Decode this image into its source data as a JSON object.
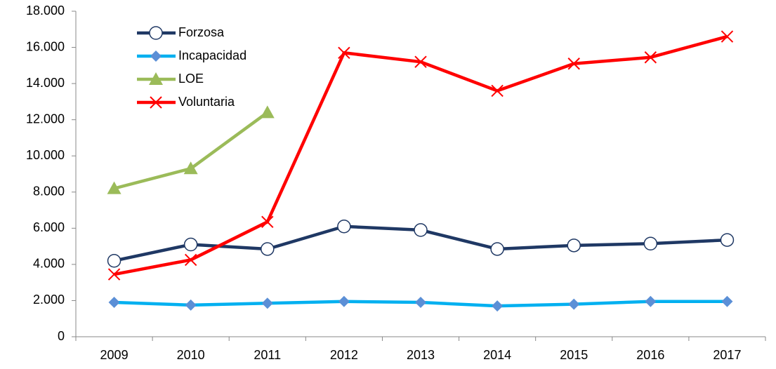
{
  "chart_data": {
    "type": "line",
    "categories": [
      "2009",
      "2010",
      "2011",
      "2012",
      "2013",
      "2014",
      "2015",
      "2016",
      "2017"
    ],
    "series": [
      {
        "name": "Forzosa",
        "color": "#1f3864",
        "marker": "circle",
        "marker_color": "#ffffff",
        "values": [
          4200,
          5100,
          4850,
          6100,
          5900,
          4850,
          5050,
          5150,
          5350
        ]
      },
      {
        "name": "Incapacidad",
        "color": "#00b0f0",
        "marker": "diamond",
        "marker_color": "#5b8fd6",
        "values": [
          1900,
          1750,
          1850,
          1950,
          1900,
          1700,
          1800,
          1950,
          1950
        ]
      },
      {
        "name": "LOE",
        "color": "#9bbb59",
        "marker": "triangle",
        "marker_color": "#9bbb59",
        "values": [
          8200,
          9300,
          12400,
          null,
          null,
          null,
          null,
          null,
          null
        ]
      },
      {
        "name": "Voluntaria",
        "color": "#ff0000",
        "marker": "x",
        "marker_color": "#ff0000",
        "values": [
          3450,
          4250,
          6350,
          15700,
          15200,
          13600,
          15100,
          15450,
          16600
        ]
      }
    ],
    "ylim": [
      0,
      18000
    ],
    "yticks": [
      0,
      {
        "value": 2000,
        "label": "2.000"
      },
      {
        "value": 4000,
        "label": "4.000"
      },
      {
        "value": 6000,
        "label": "6.000"
      },
      {
        "value": 8000,
        "label": "8.000"
      },
      {
        "value": 10000,
        "label": "10.000"
      },
      {
        "value": 12000,
        "label": "12.000"
      },
      {
        "value": 14000,
        "label": "14.000"
      },
      {
        "value": 16000,
        "label": "16.000"
      },
      {
        "value": 18000,
        "label": "18.000"
      }
    ],
    "grid": false,
    "legend": "upper left"
  }
}
